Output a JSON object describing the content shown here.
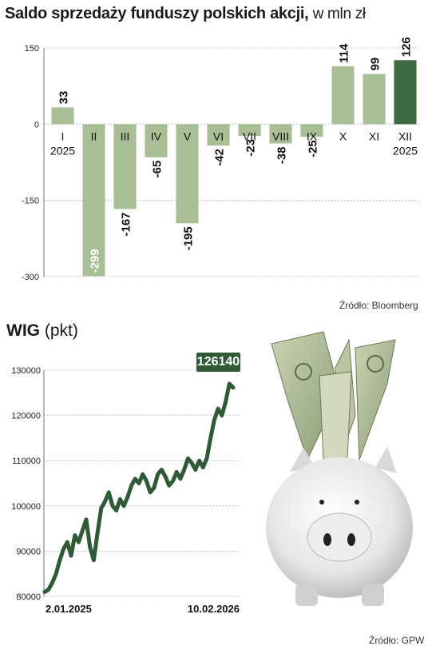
{
  "chart_data": [
    {
      "type": "bar",
      "title": "Saldo sprzedaży funduszy polskich akcji,",
      "subtitle": "w mln zł",
      "categories": [
        "I",
        "II",
        "III",
        "IV",
        "V",
        "VI",
        "VII",
        "VIII",
        "IX",
        "X",
        "XI",
        "XII"
      ],
      "category_years": [
        "2025",
        "",
        "",
        "",
        "",
        "",
        "",
        "",
        "",
        "",
        "",
        "2025"
      ],
      "values": [
        33,
        -299,
        -167,
        -65,
        -195,
        -42,
        -23,
        -38,
        -25,
        114,
        99,
        126
      ],
      "value_labels": [
        "33",
        "-299",
        "-167",
        "-65",
        "-195",
        "-42",
        "-23",
        "-38",
        "-25",
        "114",
        "99",
        "126"
      ],
      "yticks": [
        "150",
        "0",
        "-150",
        "-300"
      ],
      "ylim": [
        -300,
        150
      ],
      "grid": true,
      "bar_color": "#a8bf95",
      "highlight_color": "#3f6b43",
      "highlight_index": 11,
      "source": "Źródło: Bloomberg"
    },
    {
      "type": "line",
      "title": "WIG",
      "subtitle": "(pkt)",
      "x_labels": [
        "2.01.2025",
        "10.02.2026"
      ],
      "ylim": [
        80000,
        130000
      ],
      "yticks": [
        "130000",
        "120000",
        "110000",
        "100000",
        "90000",
        "80000"
      ],
      "grid": true,
      "line_color": "#2e5a36",
      "last_value": "126140",
      "series": [
        {
          "values": [
            81000,
            81500,
            83000,
            85000,
            88000,
            90500,
            92000,
            89000,
            93500,
            92000,
            94500,
            97000,
            91000,
            88000,
            94000,
            99500,
            101000,
            103000,
            100000,
            99000,
            101500,
            100000,
            102000,
            104500,
            106000,
            105000,
            107000,
            105500,
            103000,
            104000,
            107000,
            108000,
            106500,
            104500,
            105500,
            107500,
            106000,
            108000,
            110500,
            109500,
            108000,
            110000,
            108500,
            110500,
            115000,
            119000,
            121500,
            120000,
            123000,
            127000,
            126140
          ]
        }
      ]
    }
  ],
  "image": {
    "description_icon": "piggy-bank-photo"
  }
}
